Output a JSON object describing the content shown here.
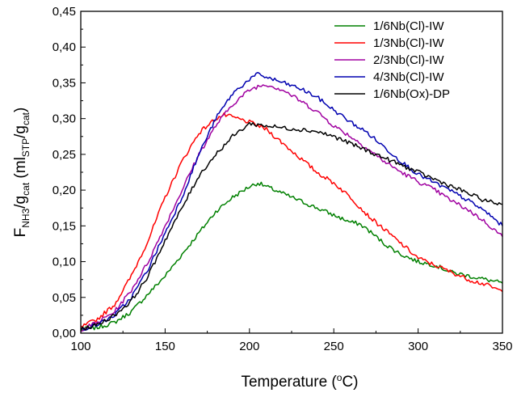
{
  "chart_data": {
    "type": "line",
    "xlabel": {
      "base": "Temperature (",
      "sup": "o",
      "tail": "C)"
    },
    "ylabel": {
      "p1": "F",
      "s1": "NH3",
      "p2": "/g",
      "s2": "cat",
      "p3": " (ml",
      "s3": "STP",
      "p4": "/g",
      "s4": "cat",
      "p5": ")"
    },
    "xlim": [
      100,
      350
    ],
    "ylim": [
      0,
      0.45
    ],
    "x_ticks": [
      "100",
      "150",
      "200",
      "250",
      "300",
      "350"
    ],
    "y_ticks": [
      "0,00",
      "0,05",
      "0,10",
      "0,15",
      "0,20",
      "0,25",
      "0,30",
      "0,35",
      "0,40",
      "0,45"
    ],
    "legend_position": "top-right",
    "series": [
      {
        "name": "1/6Nb(Cl)-IW",
        "color": "#008000",
        "x": [
          100,
          110,
          120,
          130,
          140,
          150,
          160,
          170,
          180,
          190,
          200,
          205,
          210,
          220,
          230,
          240,
          250,
          260,
          265,
          270,
          280,
          290,
          300,
          310,
          320,
          330,
          340,
          350
        ],
        "y": [
          0.005,
          0.008,
          0.015,
          0.03,
          0.055,
          0.08,
          0.11,
          0.14,
          0.17,
          0.19,
          0.205,
          0.21,
          0.205,
          0.195,
          0.185,
          0.175,
          0.165,
          0.155,
          0.153,
          0.145,
          0.125,
          0.11,
          0.1,
          0.095,
          0.085,
          0.08,
          0.075,
          0.07
        ]
      },
      {
        "name": "1/3Nb(Cl)-IW",
        "color": "#ff0000",
        "x": [
          100,
          110,
          120,
          130,
          140,
          150,
          160,
          170,
          180,
          185,
          190,
          200,
          210,
          220,
          230,
          240,
          250,
          260,
          270,
          280,
          290,
          300,
          310,
          320,
          330,
          340,
          350
        ],
        "y": [
          0.008,
          0.02,
          0.04,
          0.08,
          0.13,
          0.19,
          0.24,
          0.28,
          0.3,
          0.305,
          0.302,
          0.295,
          0.285,
          0.265,
          0.245,
          0.225,
          0.21,
          0.19,
          0.165,
          0.145,
          0.125,
          0.105,
          0.095,
          0.085,
          0.075,
          0.068,
          0.058
        ]
      },
      {
        "name": "2/3Nb(Cl)-IW",
        "color": "#a000a0",
        "x": [
          100,
          110,
          120,
          130,
          140,
          150,
          160,
          170,
          180,
          190,
          200,
          205,
          210,
          220,
          230,
          240,
          250,
          260,
          270,
          280,
          290,
          300,
          310,
          320,
          330,
          340,
          350
        ],
        "y": [
          0.005,
          0.015,
          0.03,
          0.06,
          0.1,
          0.15,
          0.2,
          0.25,
          0.29,
          0.32,
          0.34,
          0.345,
          0.348,
          0.34,
          0.325,
          0.31,
          0.29,
          0.275,
          0.258,
          0.24,
          0.225,
          0.212,
          0.2,
          0.185,
          0.172,
          0.155,
          0.135
        ]
      },
      {
        "name": "4/3Nb(Cl)-IW",
        "color": "#0000b0",
        "x": [
          100,
          110,
          120,
          130,
          140,
          150,
          160,
          170,
          180,
          190,
          200,
          205,
          210,
          220,
          230,
          240,
          250,
          260,
          270,
          280,
          290,
          300,
          310,
          320,
          330,
          340,
          350
        ],
        "y": [
          0.005,
          0.012,
          0.025,
          0.05,
          0.09,
          0.14,
          0.19,
          0.25,
          0.3,
          0.335,
          0.355,
          0.362,
          0.358,
          0.35,
          0.342,
          0.33,
          0.312,
          0.295,
          0.28,
          0.26,
          0.24,
          0.222,
          0.21,
          0.198,
          0.185,
          0.17,
          0.15
        ]
      },
      {
        "name": "1/6Nb(Ox)-DP",
        "color": "#000000",
        "x": [
          100,
          110,
          120,
          130,
          140,
          150,
          160,
          170,
          180,
          190,
          200,
          210,
          220,
          230,
          240,
          250,
          260,
          270,
          280,
          290,
          300,
          310,
          320,
          330,
          340,
          350
        ],
        "y": [
          0.005,
          0.012,
          0.025,
          0.045,
          0.08,
          0.13,
          0.175,
          0.22,
          0.25,
          0.275,
          0.293,
          0.29,
          0.287,
          0.285,
          0.282,
          0.275,
          0.265,
          0.255,
          0.245,
          0.235,
          0.225,
          0.215,
          0.205,
          0.195,
          0.185,
          0.18
        ]
      }
    ]
  }
}
